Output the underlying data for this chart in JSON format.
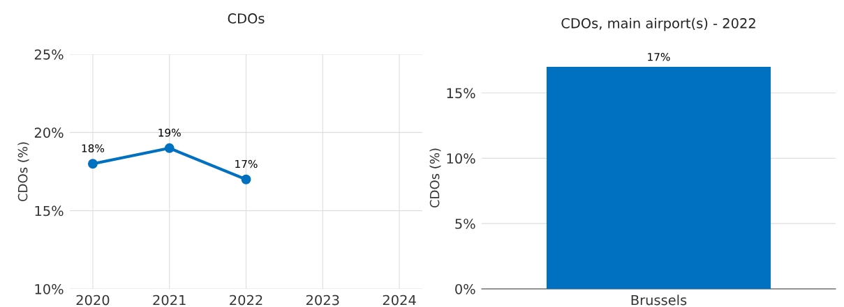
{
  "chart_data": [
    {
      "type": "line",
      "title": "CDOs",
      "ylabel": "CDOs (%)",
      "x": [
        2020,
        2021,
        2022
      ],
      "xlim": [
        2019.7,
        2024.3
      ],
      "xticks": [
        2020,
        2021,
        2022,
        2023,
        2024
      ],
      "series": [
        {
          "color": "#0070c0",
          "values": [
            18,
            19,
            17
          ],
          "value_labels": [
            "18%",
            "19%",
            "17%"
          ]
        }
      ],
      "ylim": [
        10,
        25
      ],
      "yticks": [
        {
          "value": 10,
          "label": "10%"
        },
        {
          "value": 15,
          "label": "15%"
        },
        {
          "value": 20,
          "label": "20%"
        },
        {
          "value": 25,
          "label": "25%"
        }
      ],
      "grid": true,
      "marker": "circle",
      "line_style": "solid",
      "legend": false
    },
    {
      "type": "bar",
      "title": "CDOs, main airport(s) - 2022",
      "ylabel": "CDOs (%)",
      "categories": [
        "Brussels"
      ],
      "series": [
        {
          "color": "#0070c0",
          "values": [
            17
          ],
          "value_labels": [
            "17%"
          ]
        }
      ],
      "ylim": [
        0,
        17
      ],
      "yticks": [
        {
          "value": 0,
          "label": "0%"
        },
        {
          "value": 5,
          "label": "5%"
        },
        {
          "value": 10,
          "label": "10%"
        },
        {
          "value": 15,
          "label": "15%"
        }
      ],
      "grid": "y",
      "legend": false
    }
  ]
}
